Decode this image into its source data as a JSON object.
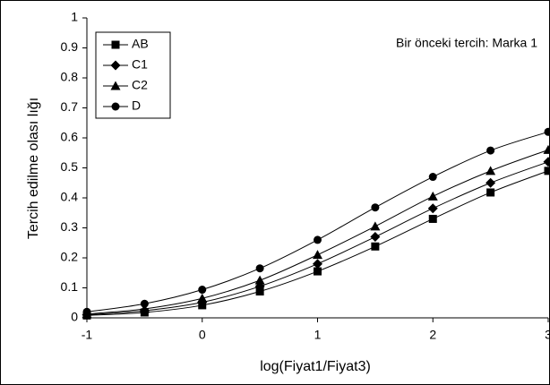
{
  "chart_data": {
    "type": "line",
    "annotation": "Bir önceki tercih: Marka 1",
    "x_label": "log(Fiyat1/Fiyat3)",
    "y_label": "Tercih edilme olası lığı",
    "x": [
      -1,
      -0.5,
      0,
      0.5,
      1,
      1.5,
      2,
      2.5,
      3
    ],
    "series": [
      {
        "name": "AB",
        "color": "#000000",
        "marker": "square",
        "values": [
          0.008,
          0.018,
          0.042,
          0.088,
          0.155,
          0.238,
          0.33,
          0.418,
          0.49
        ]
      },
      {
        "name": "C1",
        "color": "#000000",
        "marker": "diamond",
        "values": [
          0.01,
          0.024,
          0.052,
          0.105,
          0.18,
          0.27,
          0.365,
          0.45,
          0.52
        ]
      },
      {
        "name": "C2",
        "color": "#000000",
        "marker": "triangle",
        "values": [
          0.013,
          0.03,
          0.065,
          0.125,
          0.21,
          0.305,
          0.405,
          0.49,
          0.56
        ]
      },
      {
        "name": "D",
        "color": "#000000",
        "marker": "circle",
        "values": [
          0.02,
          0.047,
          0.094,
          0.165,
          0.26,
          0.368,
          0.47,
          0.558,
          0.62
        ]
      }
    ],
    "xlim": [
      -1,
      3
    ],
    "xticks": [
      -1,
      0,
      1,
      2,
      3
    ],
    "ylim": [
      0,
      1
    ],
    "yticks": [
      0,
      0.1,
      0.2,
      0.3,
      0.4,
      0.5,
      0.6,
      0.7,
      0.8,
      0.9,
      1
    ],
    "legend": "top-left",
    "grid": false
  }
}
